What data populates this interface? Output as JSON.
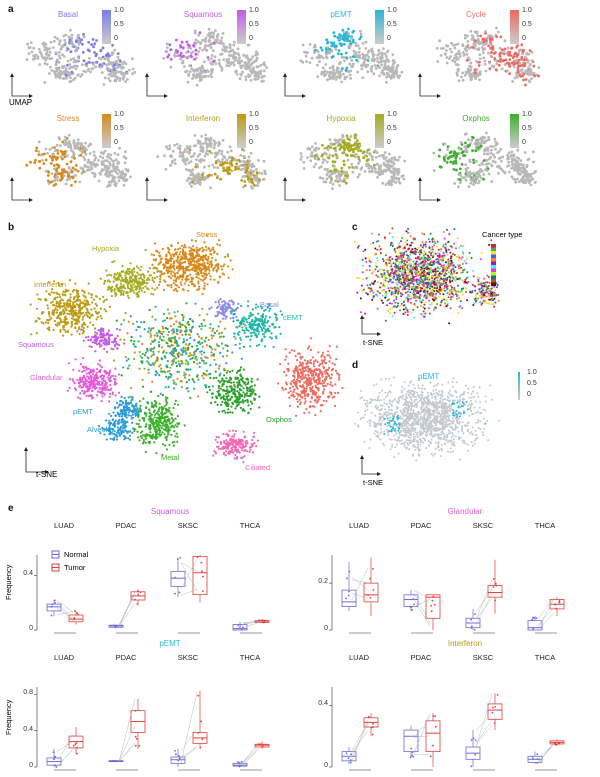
{
  "panel_labels": {
    "a": "a",
    "b": "b",
    "c": "c",
    "d": "d",
    "e": "e"
  },
  "panel_a": {
    "axis_label": "UMAP",
    "scale_ticks": [
      "1.0",
      "0.5",
      "0"
    ],
    "plots": [
      {
        "title": "Basal",
        "color": "#7b7bef"
      },
      {
        "title": "Squamous",
        "color": "#c35be8"
      },
      {
        "title": "pEMT",
        "color": "#29b6d8"
      },
      {
        "title": "Cycle",
        "color": "#ee6a5f"
      },
      {
        "title": "Stress",
        "color": "#d78a1c"
      },
      {
        "title": "Interferon",
        "color": "#bd9a10"
      },
      {
        "title": "Hypoxia",
        "color": "#a3ac1d"
      },
      {
        "title": "Oxphos",
        "color": "#3bb02a"
      }
    ]
  },
  "panel_b": {
    "axis_label": "t-SNE",
    "clusters": [
      {
        "label": "Stress",
        "color": "#d78a1c"
      },
      {
        "label": "Hypoxia",
        "color": "#a3ac1d"
      },
      {
        "label": "Interferon",
        "color": "#bd9a10"
      },
      {
        "label": "Basal",
        "color": "#8c8ce8"
      },
      {
        "label": "cEMT",
        "color": "#1fb8a5"
      },
      {
        "label": "Squamous",
        "color": "#c35be8"
      },
      {
        "label": "Glandular",
        "color": "#e45bd8"
      },
      {
        "label": "Cycle",
        "color": "#ee6a5f"
      },
      {
        "label": "pEMT",
        "color": "#2a9cd8"
      },
      {
        "label": "Alveolar",
        "color": "#2a9cd8"
      },
      {
        "label": "Oxphos",
        "color": "#2aa02a"
      },
      {
        "label": "Metal",
        "color": "#3bb02a"
      },
      {
        "label": "Ciliated",
        "color": "#f06bb4"
      }
    ]
  },
  "panel_c": {
    "axis_label": "t-SNE",
    "legend_title": "Cancer type"
  },
  "panel_d": {
    "axis_label": "t-SNE",
    "title": "pEMT",
    "scale_ticks": [
      "1.0",
      "0.5",
      "0"
    ]
  },
  "panel_e": {
    "legend": [
      {
        "label": "Normal",
        "color": "#6a6ad6"
      },
      {
        "label": "Tumor",
        "color": "#e0403a"
      }
    ],
    "ylabel": "Frequency",
    "cancers": [
      "LUAD",
      "PDAC",
      "SKSC",
      "THCA"
    ]
  },
  "chart_data": [
    {
      "type": "box",
      "title": "Squamous",
      "title_color": "#c35be8",
      "ylabel": "Frequency",
      "ylim": [
        0,
        0.55
      ],
      "yticks": [
        "0",
        "0.4"
      ],
      "categories": [
        "LUAD",
        "PDAC",
        "SKSC",
        "THCA"
      ],
      "series": [
        {
          "name": "Normal",
          "boxes": [
            {
              "q1": 0.14,
              "med": 0.17,
              "q3": 0.19,
              "lo": 0.1,
              "hi": 0.22
            },
            {
              "q1": 0.02,
              "med": 0.03,
              "q3": 0.035,
              "lo": 0.02,
              "hi": 0.04
            },
            {
              "q1": 0.32,
              "med": 0.38,
              "q3": 0.43,
              "lo": 0.24,
              "hi": 0.53
            },
            {
              "q1": 0.0,
              "med": 0.01,
              "q3": 0.04,
              "lo": 0.0,
              "hi": 0.06
            }
          ]
        },
        {
          "name": "Tumor",
          "boxes": [
            {
              "q1": 0.06,
              "med": 0.08,
              "q3": 0.11,
              "lo": 0.04,
              "hi": 0.14
            },
            {
              "q1": 0.22,
              "med": 0.25,
              "q3": 0.28,
              "lo": 0.18,
              "hi": 0.3
            },
            {
              "q1": 0.26,
              "med": 0.42,
              "q3": 0.54,
              "lo": 0.2,
              "hi": 0.55
            },
            {
              "q1": 0.055,
              "med": 0.065,
              "q3": 0.07,
              "lo": 0.05,
              "hi": 0.08
            }
          ]
        }
      ]
    },
    {
      "type": "box",
      "title": "Glandular",
      "title_color": "#e45bd8",
      "ylabel": "",
      "ylim": [
        0,
        0.32
      ],
      "yticks": [
        "0",
        "0.2"
      ],
      "categories": [
        "LUAD",
        "PDAC",
        "SKSC",
        "THCA"
      ],
      "series": [
        {
          "name": "Normal",
          "boxes": [
            {
              "q1": 0.1,
              "med": 0.12,
              "q3": 0.17,
              "lo": 0.08,
              "hi": 0.29
            },
            {
              "q1": 0.1,
              "med": 0.13,
              "q3": 0.15,
              "lo": 0.08,
              "hi": 0.17
            },
            {
              "q1": 0.01,
              "med": 0.03,
              "q3": 0.05,
              "lo": 0.0,
              "hi": 0.09
            },
            {
              "q1": 0.0,
              "med": 0.01,
              "q3": 0.04,
              "lo": 0.0,
              "hi": 0.06
            }
          ]
        },
        {
          "name": "Tumor",
          "boxes": [
            {
              "q1": 0.12,
              "med": 0.15,
              "q3": 0.2,
              "lo": 0.06,
              "hi": 0.31
            },
            {
              "q1": 0.05,
              "med": 0.14,
              "q3": 0.15,
              "lo": 0.0,
              "hi": 0.15
            },
            {
              "q1": 0.14,
              "med": 0.16,
              "q3": 0.19,
              "lo": 0.07,
              "hi": 0.3
            },
            {
              "q1": 0.09,
              "med": 0.11,
              "q3": 0.13,
              "lo": 0.06,
              "hi": 0.14
            }
          ]
        }
      ]
    },
    {
      "type": "box",
      "title": "pEMT",
      "title_color": "#29b6d8",
      "ylabel": "Frequency",
      "ylim": [
        0,
        0.88
      ],
      "yticks": [
        "0",
        "0.4",
        "0.8"
      ],
      "categories": [
        "LUAD",
        "PDAC",
        "SKSC",
        "THCA"
      ],
      "series": [
        {
          "name": "Normal",
          "boxes": [
            {
              "q1": 0.02,
              "med": 0.06,
              "q3": 0.1,
              "lo": 0.0,
              "hi": 0.2
            },
            {
              "q1": 0.06,
              "med": 0.065,
              "q3": 0.07,
              "lo": 0.06,
              "hi": 0.07
            },
            {
              "q1": 0.04,
              "med": 0.08,
              "q3": 0.11,
              "lo": 0.0,
              "hi": 0.2
            },
            {
              "q1": 0.01,
              "med": 0.02,
              "q3": 0.04,
              "lo": 0.0,
              "hi": 0.06
            }
          ]
        },
        {
          "name": "Tumor",
          "boxes": [
            {
              "q1": 0.21,
              "med": 0.28,
              "q3": 0.34,
              "lo": 0.14,
              "hi": 0.44
            },
            {
              "q1": 0.38,
              "med": 0.5,
              "q3": 0.62,
              "lo": 0.2,
              "hi": 0.75
            },
            {
              "q1": 0.26,
              "med": 0.32,
              "q3": 0.38,
              "lo": 0.2,
              "hi": 0.84
            },
            {
              "q1": 0.22,
              "med": 0.24,
              "q3": 0.25,
              "lo": 0.2,
              "hi": 0.28
            }
          ]
        }
      ]
    },
    {
      "type": "box",
      "title": "Interferon",
      "title_color": "#bd9a10",
      "ylabel": "",
      "ylim": [
        0,
        0.52
      ],
      "yticks": [
        "0",
        "0.4"
      ],
      "categories": [
        "LUAD",
        "PDAC",
        "SKSC",
        "THCA"
      ],
      "series": [
        {
          "name": "Normal",
          "boxes": [
            {
              "q1": 0.04,
              "med": 0.07,
              "q3": 0.1,
              "lo": 0.02,
              "hi": 0.13
            },
            {
              "q1": 0.1,
              "med": 0.2,
              "q3": 0.24,
              "lo": 0.06,
              "hi": 0.27
            },
            {
              "q1": 0.05,
              "med": 0.09,
              "q3": 0.13,
              "lo": 0.0,
              "hi": 0.24
            },
            {
              "q1": 0.03,
              "med": 0.05,
              "q3": 0.07,
              "lo": 0.02,
              "hi": 0.1
            }
          ]
        },
        {
          "name": "Tumor",
          "boxes": [
            {
              "q1": 0.26,
              "med": 0.29,
              "q3": 0.32,
              "lo": 0.2,
              "hi": 0.35
            },
            {
              "q1": 0.1,
              "med": 0.22,
              "q3": 0.3,
              "lo": 0.0,
              "hi": 0.35
            },
            {
              "q1": 0.31,
              "med": 0.37,
              "q3": 0.41,
              "lo": 0.24,
              "hi": 0.48
            },
            {
              "q1": 0.15,
              "med": 0.16,
              "q3": 0.17,
              "lo": 0.14,
              "hi": 0.18
            }
          ]
        }
      ]
    }
  ]
}
